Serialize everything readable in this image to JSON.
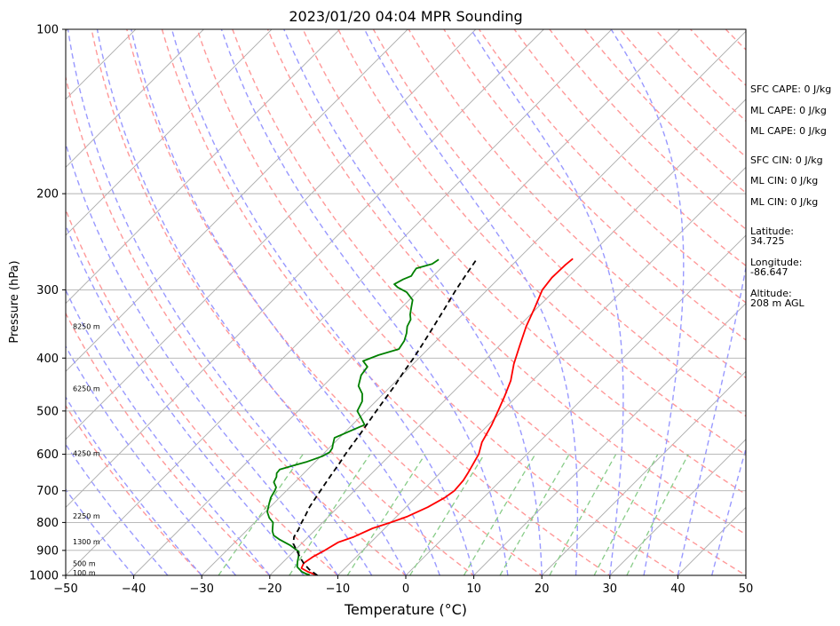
{
  "chart_data": {
    "type": "line",
    "title": "2023/01/20 04:04 MPR Sounding",
    "xlabel": "Temperature (°C)",
    "ylabel": "Pressure (hPa)",
    "xlim": [
      -50,
      50
    ],
    "ylim": [
      1000,
      100
    ],
    "y_scale": "log",
    "skew": true,
    "x_ticks": [
      "−50",
      "−40",
      "−30",
      "−20",
      "−10",
      "0",
      "10",
      "20",
      "30",
      "40",
      "50"
    ],
    "y_ticks": [
      {
        "value": 100,
        "label": "100"
      },
      {
        "value": 200,
        "label": "200"
      },
      {
        "value": 300,
        "label": "300"
      },
      {
        "value": 400,
        "label": "400"
      },
      {
        "value": 500,
        "label": "500"
      },
      {
        "value": 600,
        "label": "600"
      },
      {
        "value": 700,
        "label": "700"
      },
      {
        "value": 800,
        "label": "800"
      },
      {
        "value": 900,
        "label": "900"
      },
      {
        "value": 1000,
        "label": "1000"
      }
    ],
    "grid": true,
    "colors": {
      "temperature": "#ff0000",
      "dewpoint": "#008000",
      "parcel": "#000000",
      "isotherm": "#aaaaaa",
      "dry_adiabat": "#ff9999",
      "moist_adiabat": "#9999ff",
      "mixing_ratio": "#88cc88",
      "height_marker": "#cc88cc"
    },
    "height_labels": [
      {
        "p": 350,
        "label": "8250 m"
      },
      {
        "p": 455,
        "label": "6250 m"
      },
      {
        "p": 598,
        "label": "4250 m"
      },
      {
        "p": 778,
        "label": "2250 m"
      },
      {
        "p": 867,
        "label": "1300 m"
      },
      {
        "p": 950,
        "label": "500 m"
      },
      {
        "p": 988,
        "label": "100 m"
      }
    ],
    "series": [
      {
        "key": "temperature",
        "points": [
          [
            1000,
            -13.0
          ],
          [
            985,
            -14.9
          ],
          [
            970,
            -16.4
          ],
          [
            950,
            -16.8
          ],
          [
            925,
            -16.4
          ],
          [
            900,
            -15.6
          ],
          [
            870,
            -14.8
          ],
          [
            850,
            -13.3
          ],
          [
            820,
            -11.8
          ],
          [
            800,
            -10.0
          ],
          [
            780,
            -8.4
          ],
          [
            750,
            -6.8
          ],
          [
            720,
            -5.7
          ],
          [
            700,
            -5.3
          ],
          [
            670,
            -5.5
          ],
          [
            650,
            -5.9
          ],
          [
            620,
            -6.6
          ],
          [
            600,
            -7.1
          ],
          [
            570,
            -8.4
          ],
          [
            530,
            -9.5
          ],
          [
            500,
            -10.6
          ],
          [
            470,
            -11.8
          ],
          [
            440,
            -13.2
          ],
          [
            410,
            -15.2
          ],
          [
            380,
            -17.0
          ],
          [
            350,
            -18.9
          ],
          [
            325,
            -20.3
          ],
          [
            300,
            -21.9
          ],
          [
            285,
            -22.3
          ],
          [
            270,
            -22.2
          ],
          [
            263,
            -22.0
          ]
        ]
      },
      {
        "key": "dewpoint",
        "points": [
          [
            998,
            -14.2
          ],
          [
            994,
            -14.8
          ],
          [
            985,
            -15.8
          ],
          [
            965,
            -17.2
          ],
          [
            945,
            -17.9
          ],
          [
            925,
            -18.5
          ],
          [
            905,
            -19.2
          ],
          [
            880,
            -21.5
          ],
          [
            860,
            -23.8
          ],
          [
            845,
            -25.3
          ],
          [
            830,
            -26.1
          ],
          [
            815,
            -26.7
          ],
          [
            800,
            -27.3
          ],
          [
            785,
            -28.5
          ],
          [
            765,
            -29.7
          ],
          [
            740,
            -30.6
          ],
          [
            720,
            -31.3
          ],
          [
            700,
            -31.7
          ],
          [
            690,
            -32.0
          ],
          [
            675,
            -33.1
          ],
          [
            660,
            -33.5
          ],
          [
            650,
            -34.0
          ],
          [
            640,
            -34.1
          ],
          [
            630,
            -32.8
          ],
          [
            620,
            -31.3
          ],
          [
            605,
            -29.8
          ],
          [
            595,
            -29.3
          ],
          [
            585,
            -29.5
          ],
          [
            575,
            -30.0
          ],
          [
            560,
            -30.7
          ],
          [
            545,
            -29.5
          ],
          [
            530,
            -28.2
          ],
          [
            515,
            -29.7
          ],
          [
            500,
            -31.3
          ],
          [
            480,
            -32.0
          ],
          [
            465,
            -33.1
          ],
          [
            450,
            -34.8
          ],
          [
            430,
            -36.0
          ],
          [
            415,
            -36.3
          ],
          [
            405,
            -37.8
          ],
          [
            395,
            -36.4
          ],
          [
            385,
            -34.3
          ],
          [
            372,
            -34.7
          ],
          [
            360,
            -35.5
          ],
          [
            350,
            -36.4
          ],
          [
            340,
            -36.9
          ],
          [
            333,
            -37.7
          ],
          [
            323,
            -38.6
          ],
          [
            313,
            -39.5
          ],
          [
            303,
            -41.5
          ],
          [
            297,
            -43.5
          ],
          [
            293,
            -44.5
          ],
          [
            287,
            -43.9
          ],
          [
            283,
            -43.2
          ],
          [
            279,
            -43.4
          ],
          [
            274,
            -43.6
          ],
          [
            269,
            -41.9
          ],
          [
            264,
            -41.6
          ]
        ]
      },
      {
        "key": "parcel",
        "points": [
          [
            1000,
            -13.0
          ],
          [
            975,
            -15.1
          ],
          [
            950,
            -16.8
          ],
          [
            925,
            -18.3
          ],
          [
            900,
            -19.7
          ],
          [
            875,
            -21.2
          ],
          [
            850,
            -22.1
          ],
          [
            825,
            -22.5
          ],
          [
            800,
            -23.1
          ],
          [
            775,
            -23.6
          ],
          [
            750,
            -24.2
          ],
          [
            725,
            -24.6
          ],
          [
            700,
            -25.0
          ],
          [
            675,
            -25.4
          ],
          [
            650,
            -25.8
          ],
          [
            625,
            -26.2
          ],
          [
            600,
            -26.7
          ],
          [
            575,
            -27.1
          ],
          [
            550,
            -27.5
          ],
          [
            525,
            -28.0
          ],
          [
            500,
            -28.5
          ],
          [
            475,
            -29.0
          ],
          [
            450,
            -29.5
          ],
          [
            425,
            -30.2
          ],
          [
            400,
            -30.8
          ],
          [
            375,
            -31.6
          ],
          [
            350,
            -32.5
          ],
          [
            325,
            -33.5
          ],
          [
            300,
            -34.6
          ],
          [
            280,
            -35.4
          ],
          [
            265,
            -36.0
          ]
        ]
      }
    ]
  },
  "sidebar": {
    "sfc_cape": "SFC CAPE: 0 J/kg",
    "ml_cape_1": "ML CAPE: 0 J/kg",
    "ml_cape_2": "ML CAPE: 0 J/kg",
    "sfc_cin": "SFC CIN: 0 J/kg",
    "ml_cin_1": "ML CIN: 0 J/kg",
    "ml_cin_2": "ML CIN: 0 J/kg",
    "latitude_label": "Latitude:",
    "latitude": "34.725",
    "longitude_label": "Longitude:",
    "longitude": "-86.647",
    "altitude_label": "Altitude:",
    "altitude": "208 m AGL"
  }
}
